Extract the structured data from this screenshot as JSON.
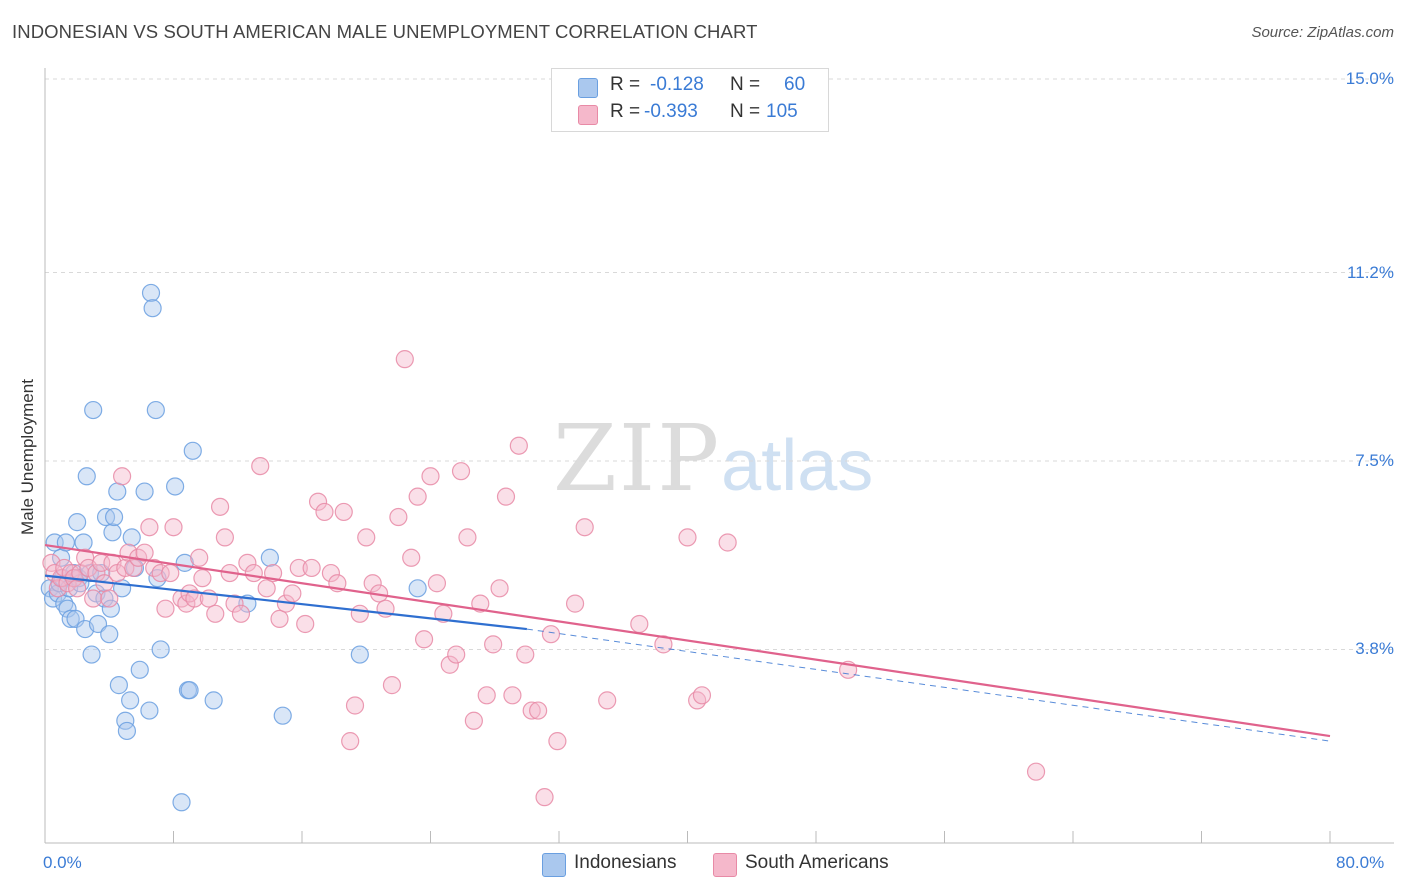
{
  "title": "INDONESIAN VS SOUTH AMERICAN MALE UNEMPLOYMENT CORRELATION CHART",
  "source": "Source: ZipAtlas.com",
  "watermark": {
    "zip": "ZIP",
    "atlas": "atlas"
  },
  "legend": {
    "rows": [
      {
        "r_label": "R =",
        "r_value": "-0.128",
        "n_label": "N =",
        "n_value": "60",
        "color": "#aac8ee"
      },
      {
        "r_label": "R =",
        "r_value": "-0.393",
        "n_label": "N =",
        "n_value": "105",
        "color": "#f5b8cb"
      }
    ]
  },
  "bottom_legend": [
    {
      "label": "Indonesians",
      "color": "#aac8ee"
    },
    {
      "label": "South Americans",
      "color": "#f5b8cb"
    }
  ],
  "chart_data": {
    "type": "scatter",
    "title": "INDONESIAN VS SOUTH AMERICAN MALE UNEMPLOYMENT CORRELATION CHART",
    "xlabel": "",
    "ylabel": "Male Unemployment",
    "xlim": [
      0,
      80
    ],
    "ylim": [
      0,
      15.0
    ],
    "x_tick_labels": [
      "0.0%",
      "80.0%"
    ],
    "y_ticks": [
      3.8,
      7.5,
      11.2,
      15.0
    ],
    "y_tick_labels": [
      "3.8%",
      "7.5%",
      "11.2%",
      "15.0%"
    ],
    "grid": true,
    "legend_position": "top-center",
    "series": [
      {
        "name": "Indonesians",
        "color": "#6a9fe0",
        "fill": "#aac8ee",
        "line_color": "#2f6fd0",
        "trend": {
          "x0": 0,
          "y0": 5.25,
          "x1": 30,
          "y1": 4.2,
          "dash_to_x": 80,
          "dash_to_y": 2.0
        },
        "points": [
          [
            0.3,
            5.0
          ],
          [
            0.5,
            4.8
          ],
          [
            0.6,
            5.9
          ],
          [
            0.8,
            4.9
          ],
          [
            0.9,
            5.1
          ],
          [
            1.0,
            5.6
          ],
          [
            1.1,
            5.2
          ],
          [
            1.2,
            4.7
          ],
          [
            1.3,
            5.9
          ],
          [
            1.4,
            4.6
          ],
          [
            1.5,
            5.0
          ],
          [
            1.6,
            4.4
          ],
          [
            1.8,
            5.3
          ],
          [
            1.9,
            4.4
          ],
          [
            2.0,
            6.3
          ],
          [
            2.1,
            5.2
          ],
          [
            2.2,
            5.1
          ],
          [
            2.4,
            5.9
          ],
          [
            2.5,
            4.2
          ],
          [
            2.6,
            7.2
          ],
          [
            2.8,
            5.3
          ],
          [
            2.9,
            3.7
          ],
          [
            3.0,
            8.5
          ],
          [
            3.2,
            4.9
          ],
          [
            3.3,
            4.3
          ],
          [
            3.5,
            5.3
          ],
          [
            3.7,
            4.8
          ],
          [
            3.8,
            6.4
          ],
          [
            4.0,
            4.1
          ],
          [
            4.1,
            4.6
          ],
          [
            4.2,
            6.1
          ],
          [
            4.3,
            6.4
          ],
          [
            4.5,
            6.9
          ],
          [
            4.6,
            3.1
          ],
          [
            4.8,
            5.0
          ],
          [
            5.0,
            2.4
          ],
          [
            5.1,
            2.2
          ],
          [
            5.3,
            2.8
          ],
          [
            5.4,
            6.0
          ],
          [
            5.6,
            5.4
          ],
          [
            5.9,
            3.4
          ],
          [
            6.2,
            6.9
          ],
          [
            6.5,
            2.6
          ],
          [
            6.6,
            10.8
          ],
          [
            6.7,
            10.5
          ],
          [
            6.9,
            8.5
          ],
          [
            7.0,
            5.2
          ],
          [
            7.2,
            3.8
          ],
          [
            8.1,
            7.0
          ],
          [
            8.5,
            0.8
          ],
          [
            8.7,
            5.5
          ],
          [
            8.9,
            3.0
          ],
          [
            9.0,
            3.0
          ],
          [
            9.2,
            7.7
          ],
          [
            10.5,
            2.8
          ],
          [
            12.6,
            4.7
          ],
          [
            14.0,
            5.6
          ],
          [
            14.8,
            2.5
          ],
          [
            19.6,
            3.7
          ],
          [
            23.2,
            5.0
          ]
        ]
      },
      {
        "name": "South Americans",
        "color": "#e88aa6",
        "fill": "#f5b8cb",
        "line_color": "#e0628c",
        "trend": {
          "x0": 0,
          "y0": 5.85,
          "x1": 80,
          "y1": 2.1
        },
        "points": [
          [
            0.4,
            5.5
          ],
          [
            0.6,
            5.3
          ],
          [
            0.8,
            5.0
          ],
          [
            1.0,
            5.2
          ],
          [
            1.2,
            5.4
          ],
          [
            1.4,
            5.1
          ],
          [
            1.6,
            5.3
          ],
          [
            1.8,
            5.2
          ],
          [
            2.0,
            5.0
          ],
          [
            2.2,
            5.3
          ],
          [
            2.5,
            5.6
          ],
          [
            2.7,
            5.4
          ],
          [
            3.0,
            4.8
          ],
          [
            3.2,
            5.3
          ],
          [
            3.5,
            5.5
          ],
          [
            3.7,
            5.1
          ],
          [
            4.0,
            4.8
          ],
          [
            4.2,
            5.5
          ],
          [
            4.5,
            5.3
          ],
          [
            4.8,
            7.2
          ],
          [
            5.0,
            5.4
          ],
          [
            5.2,
            5.7
          ],
          [
            5.5,
            5.4
          ],
          [
            5.8,
            5.6
          ],
          [
            6.2,
            5.7
          ],
          [
            6.5,
            6.2
          ],
          [
            6.8,
            5.4
          ],
          [
            7.2,
            5.3
          ],
          [
            7.5,
            4.6
          ],
          [
            7.8,
            5.3
          ],
          [
            8.0,
            6.2
          ],
          [
            8.5,
            4.8
          ],
          [
            8.8,
            4.7
          ],
          [
            9.0,
            4.9
          ],
          [
            9.3,
            4.8
          ],
          [
            9.6,
            5.6
          ],
          [
            9.8,
            5.2
          ],
          [
            10.2,
            4.8
          ],
          [
            10.6,
            4.5
          ],
          [
            10.9,
            6.6
          ],
          [
            11.2,
            6.0
          ],
          [
            11.5,
            5.3
          ],
          [
            11.8,
            4.7
          ],
          [
            12.2,
            4.5
          ],
          [
            12.6,
            5.5
          ],
          [
            13.0,
            5.3
          ],
          [
            13.4,
            7.4
          ],
          [
            13.8,
            5.0
          ],
          [
            14.2,
            5.3
          ],
          [
            14.6,
            4.4
          ],
          [
            15.0,
            4.7
          ],
          [
            15.4,
            4.9
          ],
          [
            15.8,
            5.4
          ],
          [
            16.2,
            4.3
          ],
          [
            16.6,
            5.4
          ],
          [
            17.0,
            6.7
          ],
          [
            17.4,
            6.5
          ],
          [
            17.8,
            5.3
          ],
          [
            18.2,
            5.1
          ],
          [
            18.6,
            6.5
          ],
          [
            19.0,
            2.0
          ],
          [
            19.3,
            2.7
          ],
          [
            19.6,
            4.5
          ],
          [
            20.0,
            6.0
          ],
          [
            20.4,
            5.1
          ],
          [
            20.8,
            4.9
          ],
          [
            21.2,
            4.6
          ],
          [
            21.6,
            3.1
          ],
          [
            22.0,
            6.4
          ],
          [
            22.4,
            9.5
          ],
          [
            22.8,
            5.6
          ],
          [
            23.2,
            6.8
          ],
          [
            23.6,
            4.0
          ],
          [
            24.0,
            7.2
          ],
          [
            24.4,
            5.1
          ],
          [
            24.8,
            4.5
          ],
          [
            25.2,
            3.5
          ],
          [
            25.6,
            3.7
          ],
          [
            25.9,
            7.3
          ],
          [
            26.3,
            6.0
          ],
          [
            26.7,
            2.4
          ],
          [
            27.1,
            4.7
          ],
          [
            27.5,
            2.9
          ],
          [
            27.9,
            3.9
          ],
          [
            28.3,
            5.0
          ],
          [
            28.7,
            6.8
          ],
          [
            29.1,
            2.9
          ],
          [
            29.5,
            7.8
          ],
          [
            29.9,
            3.7
          ],
          [
            30.3,
            2.6
          ],
          [
            30.7,
            2.6
          ],
          [
            31.1,
            0.9
          ],
          [
            31.5,
            4.1
          ],
          [
            31.9,
            2.0
          ],
          [
            33.0,
            4.7
          ],
          [
            33.6,
            6.2
          ],
          [
            35.0,
            2.8
          ],
          [
            37.0,
            4.3
          ],
          [
            38.5,
            3.9
          ],
          [
            40.0,
            6.0
          ],
          [
            40.6,
            2.8
          ],
          [
            40.9,
            2.9
          ],
          [
            42.5,
            5.9
          ],
          [
            50.0,
            3.4
          ],
          [
            61.7,
            1.4
          ]
        ]
      }
    ]
  }
}
